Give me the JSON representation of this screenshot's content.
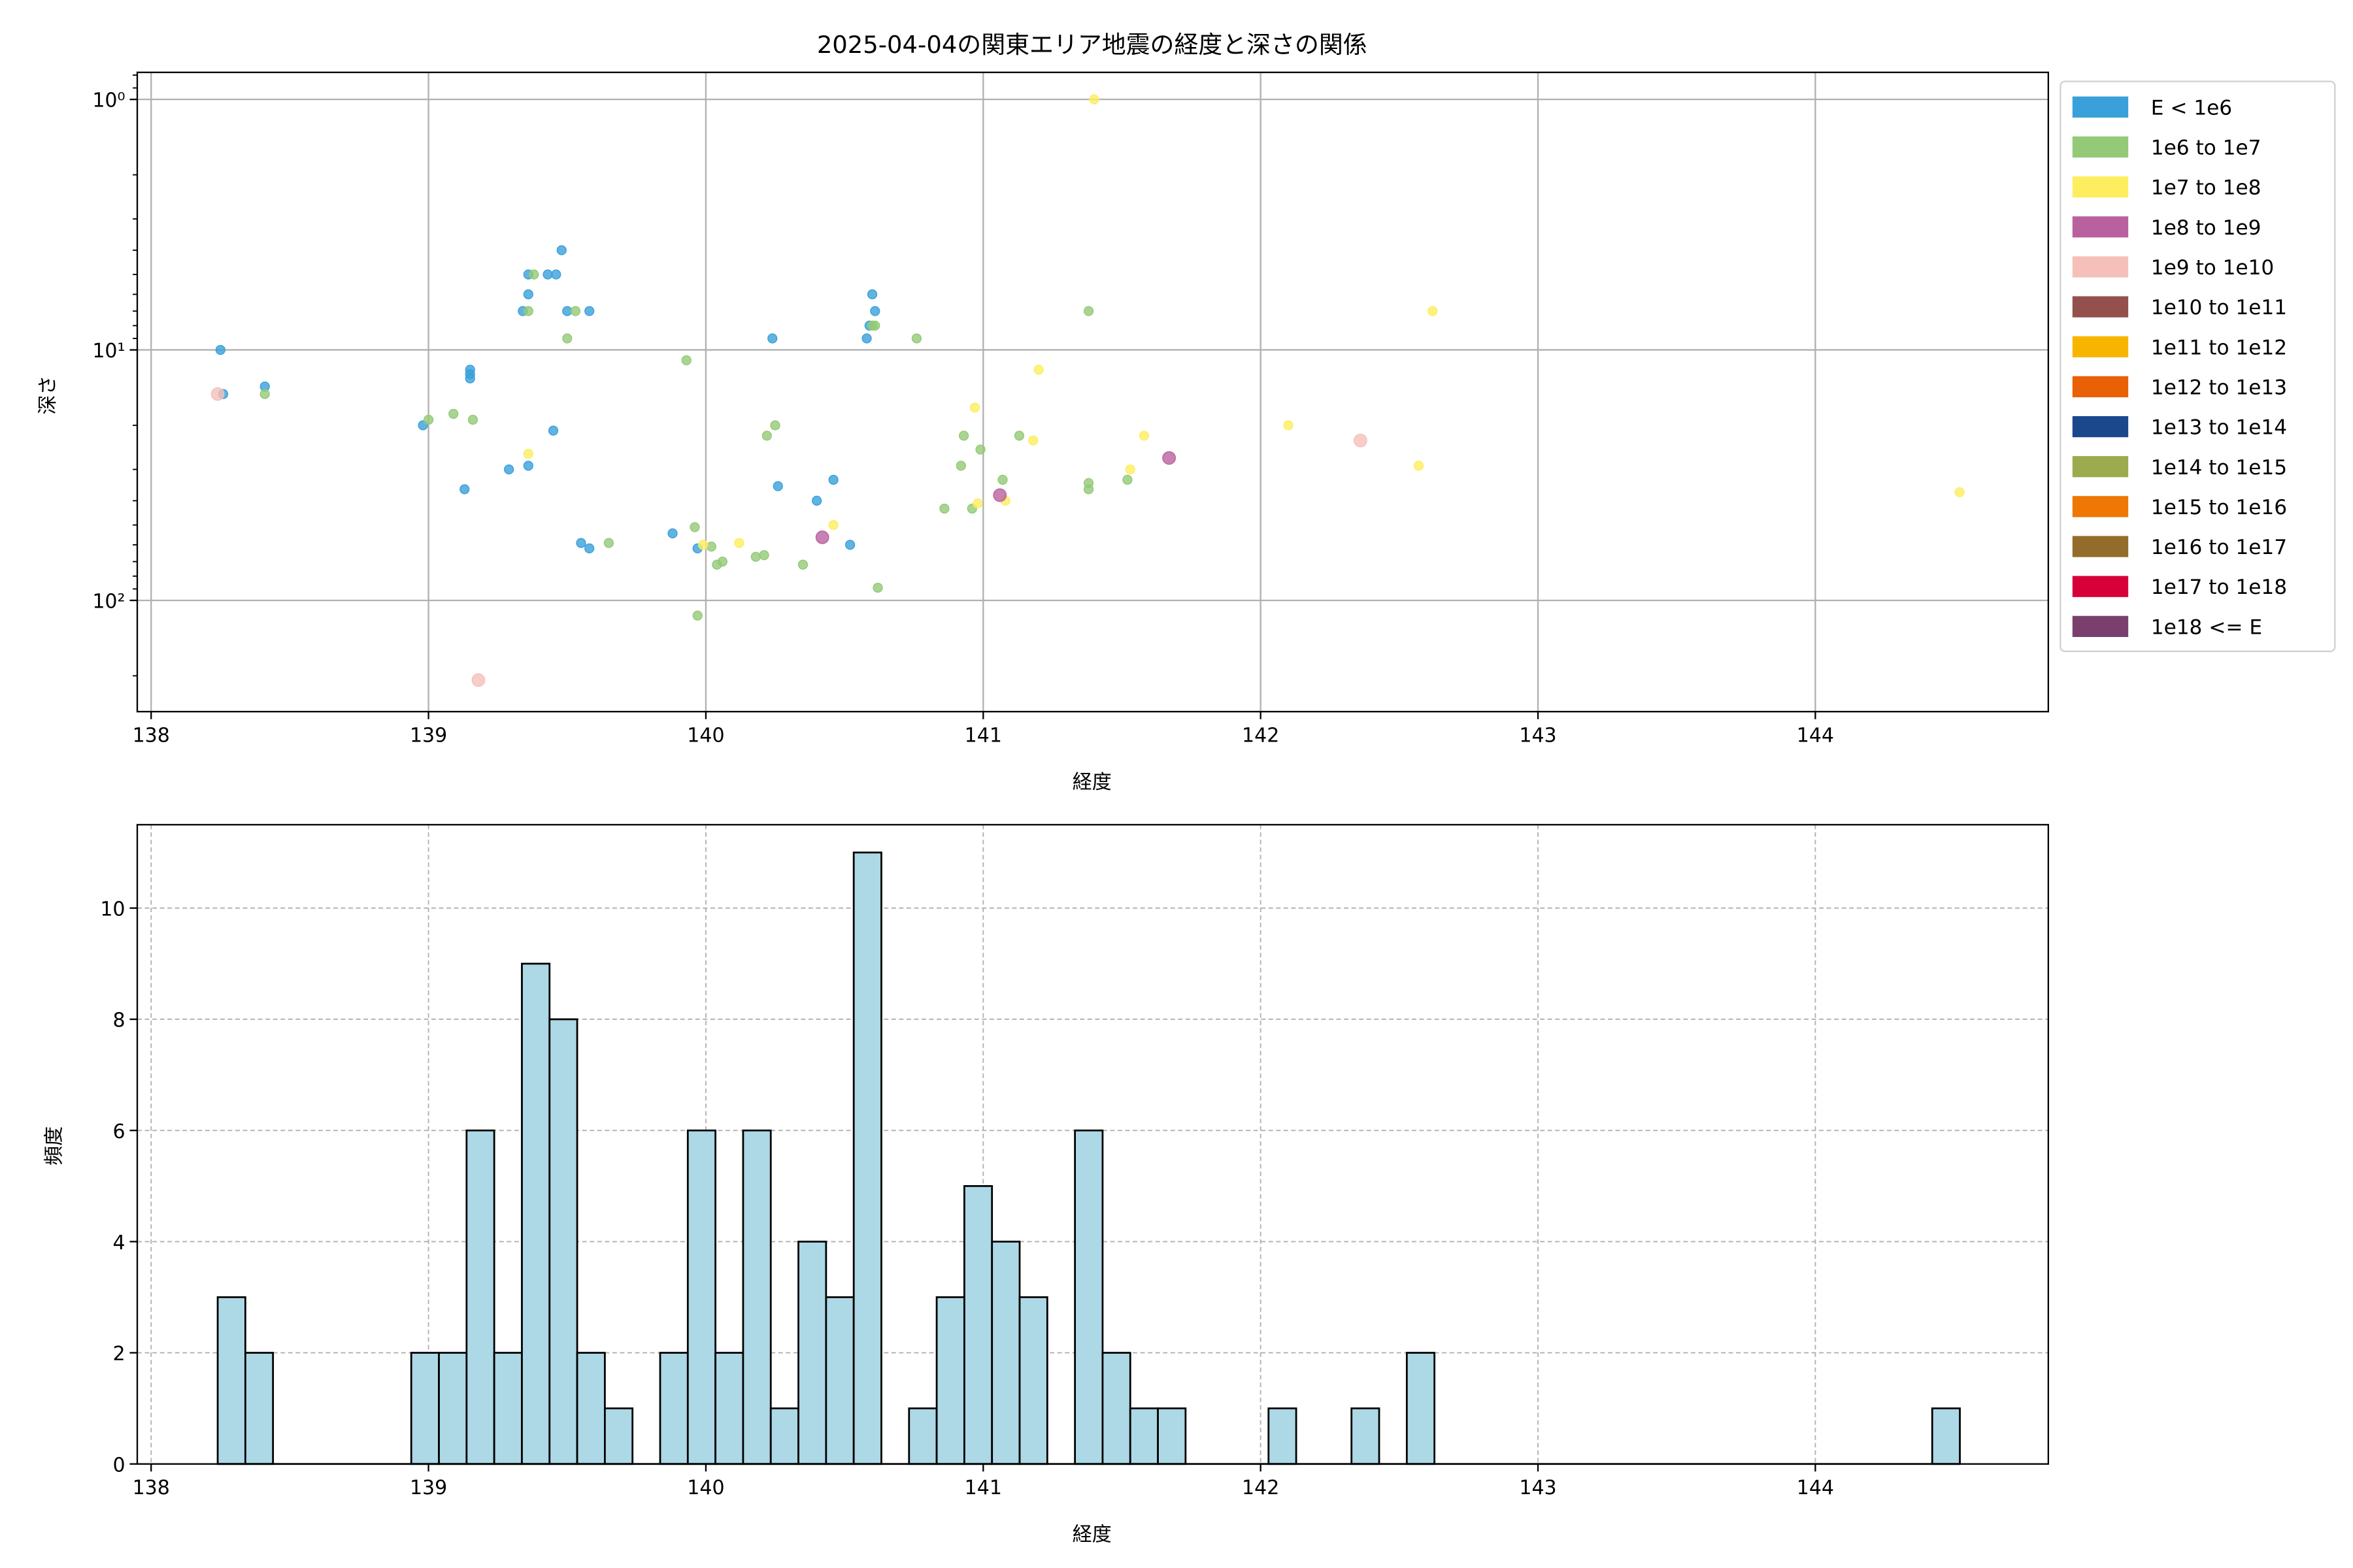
{
  "chart_data": [
    {
      "type": "scatter",
      "title": "2025-04-04の関東エリア地震の経度と深さの関係",
      "xlabel": "経度",
      "ylabel": "深さ",
      "xlim": [
        137.95,
        144.84
      ],
      "ylim": [
        278,
        0.78
      ],
      "yscale": "log",
      "y_inverted": true,
      "grid": true,
      "xticks": [
        138,
        139,
        140,
        141,
        142,
        143,
        144
      ],
      "xtick_labels": [
        "138",
        "139",
        "140",
        "141",
        "142",
        "143",
        "144"
      ],
      "yticks": [
        1,
        10,
        100
      ],
      "ytick_labels": [
        "10⁰",
        "10¹",
        "10²"
      ],
      "legend_placement": "outside-right-top",
      "legend": [
        {
          "label": "E < 1e6",
          "color": "#3aa0da"
        },
        {
          "label": "1e6 to 1e7",
          "color": "#93c977"
        },
        {
          "label": "1e7 to 1e8",
          "color": "#fdee60"
        },
        {
          "label": "1e8 to 1e9",
          "color": "#b9619f"
        },
        {
          "label": "1e9 to 1e10",
          "color": "#f5c0ba"
        },
        {
          "label": "1e10 to 1e11",
          "color": "#93504c"
        },
        {
          "label": "1e11 to 1e12",
          "color": "#f8b500"
        },
        {
          "label": "1e12 to 1e13",
          "color": "#ea6006"
        },
        {
          "label": "1e13 to 1e14",
          "color": "#1b478c"
        },
        {
          "label": "1e14 to 1e15",
          "color": "#9bab4e"
        },
        {
          "label": "1e15 to 1e16",
          "color": "#ef7704"
        },
        {
          "label": "1e16 to 1e17",
          "color": "#936c2c"
        },
        {
          "label": "1e17 to 1e18",
          "color": "#d80039"
        },
        {
          "label": "1e18 <= E",
          "color": "#7b3f6e"
        }
      ],
      "series": [
        {
          "name": "E < 1e6",
          "color": "#3aa0da",
          "points": [
            [
              138.25,
              10
            ],
            [
              138.26,
              15
            ],
            [
              138.41,
              14
            ],
            [
              138.98,
              20
            ],
            [
              139.15,
              12
            ],
            [
              139.15,
              12.5
            ],
            [
              139.15,
              13
            ],
            [
              139.13,
              36
            ],
            [
              139.29,
              30
            ],
            [
              139.36,
              29
            ],
            [
              139.34,
              7
            ],
            [
              139.36,
              6
            ],
            [
              139.36,
              5
            ],
            [
              139.43,
              5
            ],
            [
              139.46,
              5
            ],
            [
              139.48,
              4
            ],
            [
              139.5,
              7
            ],
            [
              139.58,
              7
            ],
            [
              139.45,
              21
            ],
            [
              139.55,
              59
            ],
            [
              139.58,
              62
            ],
            [
              139.88,
              54
            ],
            [
              139.97,
              62
            ],
            [
              140.24,
              9
            ],
            [
              140.26,
              35
            ],
            [
              140.4,
              40
            ],
            [
              140.46,
              33
            ],
            [
              140.52,
              60
            ],
            [
              140.58,
              9
            ],
            [
              140.59,
              8
            ],
            [
              140.61,
              7
            ],
            [
              140.6,
              6
            ]
          ]
        },
        {
          "name": "1e6 to 1e7",
          "color": "#93c977",
          "points": [
            [
              138.41,
              15
            ],
            [
              139.0,
              19
            ],
            [
              139.09,
              18
            ],
            [
              139.16,
              19
            ],
            [
              139.38,
              5
            ],
            [
              139.36,
              7
            ],
            [
              139.53,
              7
            ],
            [
              139.5,
              9
            ],
            [
              139.65,
              59
            ],
            [
              139.93,
              11
            ],
            [
              139.96,
              51
            ],
            [
              139.97,
              115
            ],
            [
              140.02,
              61
            ],
            [
              140.04,
              72
            ],
            [
              140.06,
              70
            ],
            [
              140.18,
              67
            ],
            [
              140.21,
              66
            ],
            [
              140.22,
              22
            ],
            [
              140.25,
              20
            ],
            [
              140.35,
              72
            ],
            [
              140.62,
              89
            ],
            [
              140.61,
              8
            ],
            [
              140.6,
              8
            ],
            [
              140.76,
              9
            ],
            [
              140.86,
              43
            ],
            [
              140.92,
              29
            ],
            [
              140.93,
              22
            ],
            [
              140.96,
              43
            ],
            [
              140.99,
              25
            ],
            [
              141.07,
              33
            ],
            [
              141.13,
              22
            ],
            [
              141.38,
              7
            ],
            [
              141.38,
              34
            ],
            [
              141.38,
              36
            ],
            [
              141.52,
              33
            ]
          ]
        },
        {
          "name": "1e7 to 1e8",
          "color": "#fdee60",
          "points": [
            [
              139.36,
              26
            ],
            [
              139.99,
              60
            ],
            [
              140.12,
              59
            ],
            [
              140.46,
              50
            ],
            [
              140.97,
              17
            ],
            [
              140.98,
              41
            ],
            [
              141.08,
              40
            ],
            [
              141.18,
              23
            ],
            [
              141.2,
              12
            ],
            [
              141.53,
              30
            ],
            [
              141.58,
              22
            ],
            [
              142.1,
              20
            ],
            [
              142.57,
              29
            ],
            [
              142.62,
              7
            ],
            [
              144.52,
              37
            ],
            [
              141.4,
              1.0
            ]
          ]
        },
        {
          "name": "1e8 to 1e9",
          "color": "#b9619f",
          "points": [
            [
              140.42,
              56
            ],
            [
              141.06,
              38
            ],
            [
              141.67,
              27
            ]
          ]
        },
        {
          "name": "1e9 to 1e10",
          "color": "#f5c0ba",
          "points": [
            [
              138.24,
              15
            ],
            [
              139.18,
              208
            ],
            [
              142.36,
              23
            ]
          ]
        }
      ]
    },
    {
      "type": "bar",
      "subtype": "histogram",
      "xlabel": "経度",
      "ylabel": "頻度",
      "xlim": [
        137.95,
        144.84
      ],
      "ylim": [
        0,
        11.5
      ],
      "grid": true,
      "grid_style": "dashed",
      "bar_color": "#add8e6",
      "edge_color": "#000000",
      "bin_start": 138.24,
      "bin_width": 0.0997,
      "counts": [
        3,
        2,
        0,
        0,
        0,
        0,
        0,
        2,
        2,
        6,
        2,
        9,
        8,
        2,
        1,
        0,
        2,
        6,
        2,
        6,
        1,
        4,
        3,
        11,
        0,
        1,
        3,
        5,
        4,
        3,
        0,
        6,
        2,
        1,
        1,
        0,
        0,
        0,
        1,
        0,
        0,
        1,
        0,
        2,
        0,
        0,
        0,
        0,
        0,
        0,
        0,
        0,
        0,
        0,
        0,
        0,
        0,
        0,
        0,
        0,
        0,
        0,
        1
      ],
      "xticks": [
        138,
        139,
        140,
        141,
        142,
        143,
        144
      ],
      "xtick_labels": [
        "138",
        "139",
        "140",
        "141",
        "142",
        "143",
        "144"
      ],
      "yticks": [
        0,
        2,
        4,
        6,
        8,
        10
      ],
      "ytick_labels": [
        "0",
        "2",
        "4",
        "6",
        "8",
        "10"
      ]
    }
  ]
}
